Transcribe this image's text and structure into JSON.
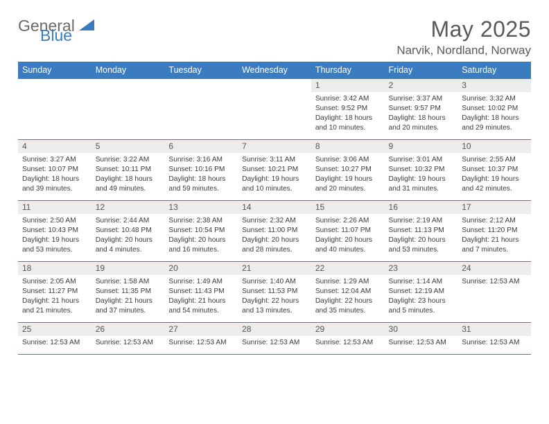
{
  "brand": {
    "part1": "General",
    "part2": "Blue"
  },
  "title": "May 2025",
  "location": "Narvik, Nordland, Norway",
  "colors": {
    "header_bg": "#3b7bbf",
    "header_text": "#ffffff",
    "daynum_bg": "#ececec",
    "border": "#3b7bbf",
    "text": "#3a3a3a",
    "title_text": "#595959"
  },
  "weekdays": [
    "Sunday",
    "Monday",
    "Tuesday",
    "Wednesday",
    "Thursday",
    "Friday",
    "Saturday"
  ],
  "weeks": [
    [
      {
        "n": "",
        "lines": []
      },
      {
        "n": "",
        "lines": []
      },
      {
        "n": "",
        "lines": []
      },
      {
        "n": "",
        "lines": []
      },
      {
        "n": "1",
        "lines": [
          "Sunrise: 3:42 AM",
          "Sunset: 9:52 PM",
          "Daylight: 18 hours and 10 minutes."
        ]
      },
      {
        "n": "2",
        "lines": [
          "Sunrise: 3:37 AM",
          "Sunset: 9:57 PM",
          "Daylight: 18 hours and 20 minutes."
        ]
      },
      {
        "n": "3",
        "lines": [
          "Sunrise: 3:32 AM",
          "Sunset: 10:02 PM",
          "Daylight: 18 hours and 29 minutes."
        ]
      }
    ],
    [
      {
        "n": "4",
        "lines": [
          "Sunrise: 3:27 AM",
          "Sunset: 10:07 PM",
          "Daylight: 18 hours and 39 minutes."
        ]
      },
      {
        "n": "5",
        "lines": [
          "Sunrise: 3:22 AM",
          "Sunset: 10:11 PM",
          "Daylight: 18 hours and 49 minutes."
        ]
      },
      {
        "n": "6",
        "lines": [
          "Sunrise: 3:16 AM",
          "Sunset: 10:16 PM",
          "Daylight: 18 hours and 59 minutes."
        ]
      },
      {
        "n": "7",
        "lines": [
          "Sunrise: 3:11 AM",
          "Sunset: 10:21 PM",
          "Daylight: 19 hours and 10 minutes."
        ]
      },
      {
        "n": "8",
        "lines": [
          "Sunrise: 3:06 AM",
          "Sunset: 10:27 PM",
          "Daylight: 19 hours and 20 minutes."
        ]
      },
      {
        "n": "9",
        "lines": [
          "Sunrise: 3:01 AM",
          "Sunset: 10:32 PM",
          "Daylight: 19 hours and 31 minutes."
        ]
      },
      {
        "n": "10",
        "lines": [
          "Sunrise: 2:55 AM",
          "Sunset: 10:37 PM",
          "Daylight: 19 hours and 42 minutes."
        ]
      }
    ],
    [
      {
        "n": "11",
        "lines": [
          "Sunrise: 2:50 AM",
          "Sunset: 10:43 PM",
          "Daylight: 19 hours and 53 minutes."
        ]
      },
      {
        "n": "12",
        "lines": [
          "Sunrise: 2:44 AM",
          "Sunset: 10:48 PM",
          "Daylight: 20 hours and 4 minutes."
        ]
      },
      {
        "n": "13",
        "lines": [
          "Sunrise: 2:38 AM",
          "Sunset: 10:54 PM",
          "Daylight: 20 hours and 16 minutes."
        ]
      },
      {
        "n": "14",
        "lines": [
          "Sunrise: 2:32 AM",
          "Sunset: 11:00 PM",
          "Daylight: 20 hours and 28 minutes."
        ]
      },
      {
        "n": "15",
        "lines": [
          "Sunrise: 2:26 AM",
          "Sunset: 11:07 PM",
          "Daylight: 20 hours and 40 minutes."
        ]
      },
      {
        "n": "16",
        "lines": [
          "Sunrise: 2:19 AM",
          "Sunset: 11:13 PM",
          "Daylight: 20 hours and 53 minutes."
        ]
      },
      {
        "n": "17",
        "lines": [
          "Sunrise: 2:12 AM",
          "Sunset: 11:20 PM",
          "Daylight: 21 hours and 7 minutes."
        ]
      }
    ],
    [
      {
        "n": "18",
        "lines": [
          "Sunrise: 2:05 AM",
          "Sunset: 11:27 PM",
          "Daylight: 21 hours and 21 minutes."
        ]
      },
      {
        "n": "19",
        "lines": [
          "Sunrise: 1:58 AM",
          "Sunset: 11:35 PM",
          "Daylight: 21 hours and 37 minutes."
        ]
      },
      {
        "n": "20",
        "lines": [
          "Sunrise: 1:49 AM",
          "Sunset: 11:43 PM",
          "Daylight: 21 hours and 54 minutes."
        ]
      },
      {
        "n": "21",
        "lines": [
          "Sunrise: 1:40 AM",
          "Sunset: 11:53 PM",
          "Daylight: 22 hours and 13 minutes."
        ]
      },
      {
        "n": "22",
        "lines": [
          "Sunrise: 1:29 AM",
          "Sunset: 12:04 AM",
          "Daylight: 22 hours and 35 minutes."
        ]
      },
      {
        "n": "23",
        "lines": [
          "Sunrise: 1:14 AM",
          "Sunset: 12:19 AM",
          "Daylight: 23 hours and 5 minutes."
        ]
      },
      {
        "n": "24",
        "lines": [
          "Sunrise: 12:53 AM"
        ]
      }
    ],
    [
      {
        "n": "25",
        "lines": [
          "Sunrise: 12:53 AM"
        ]
      },
      {
        "n": "26",
        "lines": [
          "Sunrise: 12:53 AM"
        ]
      },
      {
        "n": "27",
        "lines": [
          "Sunrise: 12:53 AM"
        ]
      },
      {
        "n": "28",
        "lines": [
          "Sunrise: 12:53 AM"
        ]
      },
      {
        "n": "29",
        "lines": [
          "Sunrise: 12:53 AM"
        ]
      },
      {
        "n": "30",
        "lines": [
          "Sunrise: 12:53 AM"
        ]
      },
      {
        "n": "31",
        "lines": [
          "Sunrise: 12:53 AM"
        ]
      }
    ]
  ]
}
